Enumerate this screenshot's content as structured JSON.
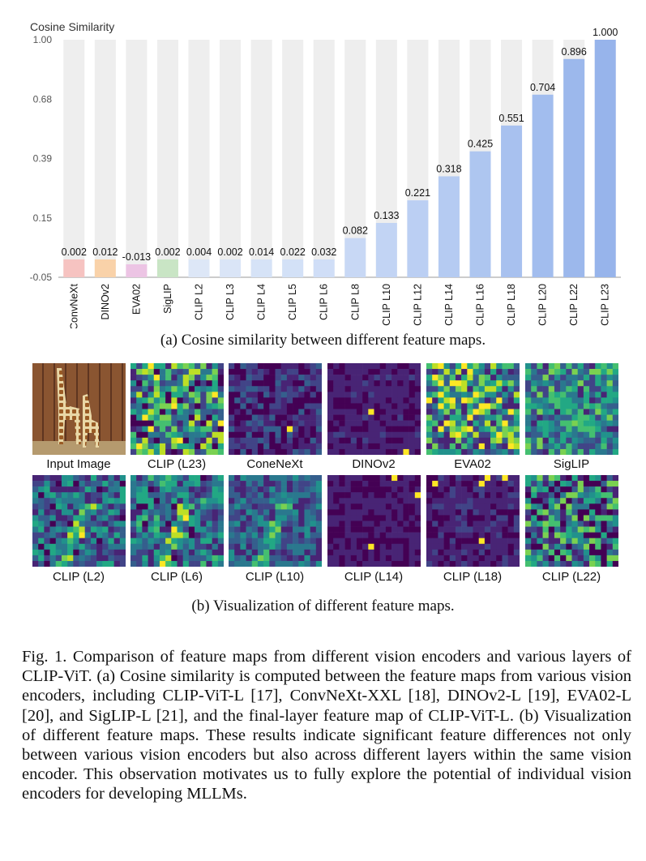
{
  "chart_data": {
    "type": "bar",
    "ylabel": "Cosine Similarity",
    "yticks": [
      "1.00",
      "0.68",
      "0.39",
      "0.15",
      "-0.05"
    ],
    "ytick_values": [
      1.0,
      0.68,
      0.39,
      0.15,
      -0.05
    ],
    "ylim": [
      -0.05,
      1.0
    ],
    "grid": false,
    "categories": [
      "ConvNeXt",
      "DINOv2",
      "EVA02",
      "SigLIP",
      "CLIP L2",
      "CLIP L3",
      "CLIP L4",
      "CLIP L5",
      "CLIP L6",
      "CLIP L8",
      "CLIP L10",
      "CLIP L12",
      "CLIP L14",
      "CLIP L16",
      "CLIP L18",
      "CLIP L20",
      "CLIP L22",
      "CLIP L23"
    ],
    "values": [
      0.002,
      0.012,
      -0.013,
      0.002,
      0.004,
      0.002,
      0.014,
      0.022,
      0.032,
      0.082,
      0.133,
      0.221,
      0.318,
      0.425,
      0.551,
      0.704,
      0.896,
      1.0
    ],
    "value_labels": [
      "0.002",
      "0.012",
      "-0.013",
      "0.002",
      "0.004",
      "0.002",
      "0.014",
      "0.022",
      "0.032",
      "0.082",
      "0.133",
      "0.221",
      "0.318",
      "0.425",
      "0.551",
      "0.704",
      "0.896",
      "1.000"
    ],
    "colors": [
      "#f6c3c1",
      "#f9d2a9",
      "#ecc4e4",
      "#c9e5c5",
      "#dde7f7",
      "#dae5f7",
      "#d6e3f7",
      "#d3e1f7",
      "#d0def7",
      "#c8d8f5",
      "#c2d4f4",
      "#bbcff3",
      "#b5cbf2",
      "#aec6f0",
      "#a8c1ef",
      "#a2bdee",
      "#9cb8ec",
      "#97b4eb"
    ],
    "background_bar_color": "#eeeeee"
  },
  "captions": {
    "a": "(a) Cosine similarity between different feature maps.",
    "b": "(b) Visualization of different feature maps."
  },
  "maps_row1": [
    "Input Image",
    "CLIP (L23)",
    "ConeNeXt",
    "DINOv2",
    "EVA02",
    "SigLIP"
  ],
  "maps_row2": [
    "CLIP (L2)",
    "CLIP (L6)",
    "CLIP (L10)",
    "CLIP (L14)",
    "CLIP (L18)",
    "CLIP (L22)"
  ],
  "paragraph": "Fig. 1.  Comparison of feature maps from different vision encoders and various layers of CLIP-ViT. (a) Cosine similarity is computed between the feature maps from various vision encoders, including CLIP-ViT-L [17], ConvNeXt-XXL [18], DINOv2-L [19], EVA02-L [20], and SigLIP-L [21], and the final-layer feature map of CLIP-ViT-L. (b) Visualization of different feature maps. These results indicate significant feature differences not only between various vision encoders but also across different layers within the same vision encoder. This observation motivates us to fully explore the potential of individual vision encoders for developing MLLMs."
}
